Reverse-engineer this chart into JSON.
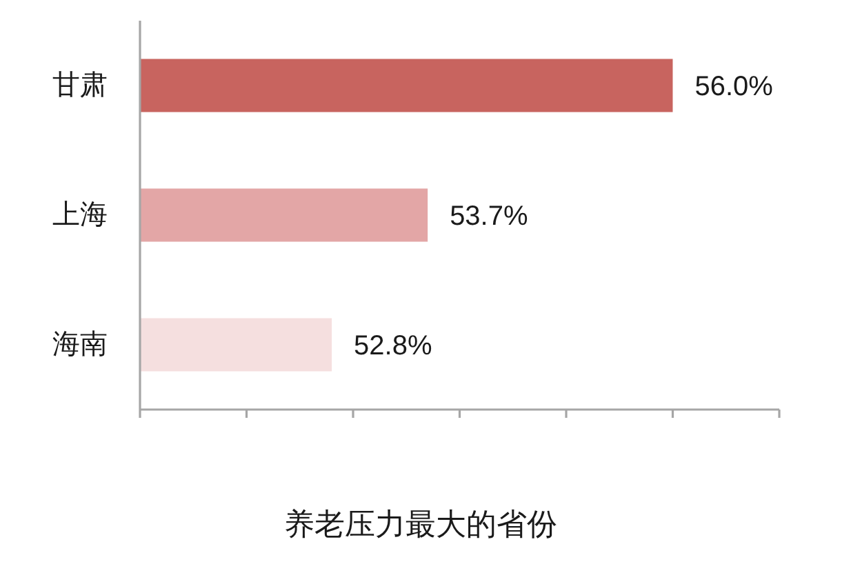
{
  "chart_data": {
    "type": "bar",
    "orientation": "horizontal",
    "title": "养老压力最大的省份",
    "categories": [
      "甘肃",
      "上海",
      "海南"
    ],
    "values": [
      56.0,
      53.7,
      52.8
    ],
    "colors": [
      "#c8645f",
      "#e3a6a6",
      "#f5dfdf"
    ],
    "value_labels": [
      "56.0%",
      "53.7%",
      "52.8%"
    ],
    "xlim": [
      51,
      57
    ],
    "xticks": [
      {
        "value": 51,
        "label": null
      },
      {
        "value": 52,
        "label": null
      },
      {
        "value": 53,
        "label": null
      },
      {
        "value": 54,
        "label": null
      },
      {
        "value": 55,
        "label": null
      },
      {
        "value": 56,
        "label": null
      },
      {
        "value": 57,
        "label": null
      }
    ],
    "tick_labels": "y"
  }
}
